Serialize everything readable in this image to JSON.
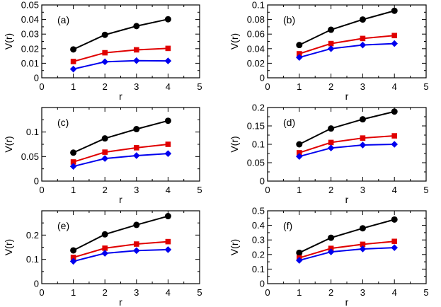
{
  "chart_data": [
    {
      "type": "line",
      "panel_label": "(a)",
      "xlabel": "r",
      "ylabel": "V(r)",
      "xlim": [
        0,
        5
      ],
      "ylim": [
        0,
        0.05
      ],
      "xticks": [
        "0",
        "1",
        "2",
        "3",
        "4",
        "5"
      ],
      "yticks": [
        "0",
        "0.01",
        "0.02",
        "0.03",
        "0.04",
        "0.05"
      ],
      "x": [
        1,
        2,
        3,
        4
      ],
      "series": [
        {
          "name": "black",
          "color": "#000000",
          "marker": "circle",
          "values": [
            0.0195,
            0.0295,
            0.0355,
            0.0402
          ]
        },
        {
          "name": "red",
          "color": "#e00000",
          "marker": "square",
          "values": [
            0.0112,
            0.0172,
            0.0192,
            0.0202
          ]
        },
        {
          "name": "blue",
          "color": "#0000ee",
          "marker": "diamond",
          "values": [
            0.006,
            0.011,
            0.0118,
            0.0116
          ]
        }
      ]
    },
    {
      "type": "line",
      "panel_label": "(b)",
      "xlabel": "r",
      "ylabel": "V(r)",
      "xlim": [
        0,
        5
      ],
      "ylim": [
        0,
        0.1
      ],
      "xticks": [
        "0",
        "1",
        "2",
        "3",
        "4",
        "5"
      ],
      "yticks": [
        "0",
        "0.02",
        "0.04",
        "0.06",
        "0.08",
        "0.1"
      ],
      "x": [
        1,
        2,
        3,
        4
      ],
      "series": [
        {
          "name": "black",
          "color": "#000000",
          "marker": "circle",
          "values": [
            0.045,
            0.066,
            0.08,
            0.092
          ]
        },
        {
          "name": "red",
          "color": "#e00000",
          "marker": "square",
          "values": [
            0.033,
            0.047,
            0.054,
            0.058
          ]
        },
        {
          "name": "blue",
          "color": "#0000ee",
          "marker": "diamond",
          "values": [
            0.028,
            0.04,
            0.045,
            0.047
          ]
        }
      ]
    },
    {
      "type": "line",
      "panel_label": "(c)",
      "xlabel": "r",
      "ylabel": "V(r)",
      "xlim": [
        0,
        5
      ],
      "ylim": [
        0,
        0.15
      ],
      "xticks": [
        "0",
        "1",
        "2",
        "3",
        "4",
        "5"
      ],
      "yticks": [
        "0",
        "0.05",
        "0.1"
      ],
      "x": [
        1,
        2,
        3,
        4
      ],
      "series": [
        {
          "name": "black",
          "color": "#000000",
          "marker": "circle",
          "values": [
            0.058,
            0.087,
            0.106,
            0.123
          ]
        },
        {
          "name": "red",
          "color": "#e00000",
          "marker": "square",
          "values": [
            0.039,
            0.059,
            0.068,
            0.075
          ]
        },
        {
          "name": "blue",
          "color": "#0000ee",
          "marker": "diamond",
          "values": [
            0.03,
            0.046,
            0.052,
            0.056
          ]
        }
      ]
    },
    {
      "type": "line",
      "panel_label": "(d)",
      "xlabel": "r",
      "ylabel": "V(r)",
      "xlim": [
        0,
        5
      ],
      "ylim": [
        0,
        0.2
      ],
      "xticks": [
        "0",
        "1",
        "2",
        "3",
        "4",
        "5"
      ],
      "yticks": [
        "0",
        "0.05",
        "0.1",
        "0.15",
        "0.2"
      ],
      "x": [
        1,
        2,
        3,
        4
      ],
      "series": [
        {
          "name": "black",
          "color": "#000000",
          "marker": "circle",
          "values": [
            0.1,
            0.143,
            0.168,
            0.189
          ]
        },
        {
          "name": "red",
          "color": "#e00000",
          "marker": "square",
          "values": [
            0.077,
            0.105,
            0.117,
            0.123
          ]
        },
        {
          "name": "blue",
          "color": "#0000ee",
          "marker": "diamond",
          "values": [
            0.067,
            0.09,
            0.098,
            0.1
          ]
        }
      ]
    },
    {
      "type": "line",
      "panel_label": "(e)",
      "xlabel": "r",
      "ylabel": "V(r)",
      "xlim": [
        0,
        5
      ],
      "ylim": [
        0,
        0.3
      ],
      "xticks": [
        "0",
        "1",
        "2",
        "3",
        "4",
        "5"
      ],
      "yticks": [
        "0",
        "0.1",
        "0.2"
      ],
      "x": [
        1,
        2,
        3,
        4
      ],
      "series": [
        {
          "name": "black",
          "color": "#000000",
          "marker": "circle",
          "values": [
            0.137,
            0.203,
            0.242,
            0.278
          ]
        },
        {
          "name": "red",
          "color": "#e00000",
          "marker": "square",
          "values": [
            0.108,
            0.146,
            0.163,
            0.173
          ]
        },
        {
          "name": "blue",
          "color": "#0000ee",
          "marker": "diamond",
          "values": [
            0.092,
            0.125,
            0.136,
            0.14
          ]
        }
      ]
    },
    {
      "type": "line",
      "panel_label": "(f)",
      "xlabel": "r",
      "ylabel": "V(r)",
      "xlim": [
        0,
        5
      ],
      "ylim": [
        0,
        0.5
      ],
      "xticks": [
        "0",
        "1",
        "2",
        "3",
        "4",
        "5"
      ],
      "yticks": [
        "0",
        "0.1",
        "0.2",
        "0.3",
        "0.4",
        "0.5"
      ],
      "x": [
        1,
        2,
        3,
        4
      ],
      "series": [
        {
          "name": "black",
          "color": "#000000",
          "marker": "circle",
          "values": [
            0.212,
            0.315,
            0.38,
            0.44
          ]
        },
        {
          "name": "red",
          "color": "#e00000",
          "marker": "square",
          "values": [
            0.177,
            0.242,
            0.27,
            0.29
          ]
        },
        {
          "name": "blue",
          "color": "#0000ee",
          "marker": "diamond",
          "values": [
            0.16,
            0.218,
            0.238,
            0.247
          ]
        }
      ]
    }
  ]
}
